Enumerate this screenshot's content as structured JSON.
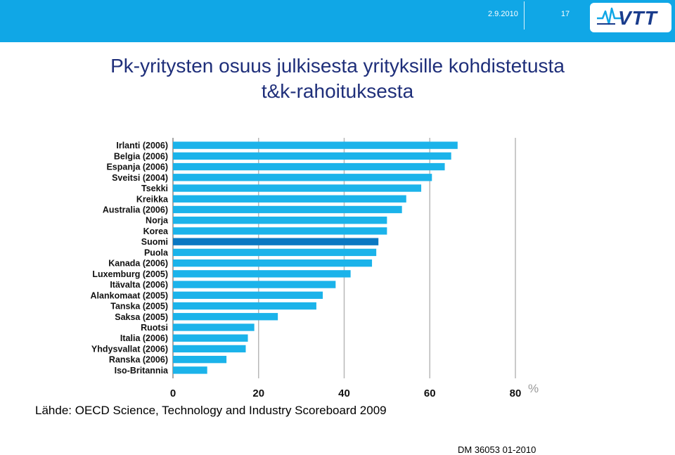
{
  "header": {
    "date": "2.9.2010",
    "page_number": "17",
    "logo_text": "VTT"
  },
  "title": {
    "line1": "Pk-yritysten osuus julkisesta yrityksille kohdistetusta",
    "line2": "t&k-rahoituksesta"
  },
  "chart_data": {
    "type": "bar",
    "orientation": "horizontal",
    "categories": [
      "Irlanti (2006)",
      "Belgia (2006)",
      "Espanja (2006)",
      "Sveitsi (2004)",
      "Tsekki",
      "Kreikka",
      "Australia (2006)",
      "Norja",
      "Korea",
      "Suomi",
      "Puola",
      "Kanada (2006)",
      "Luxemburg (2005)",
      "Itävalta (2006)",
      "Alankomaat (2005)",
      "Tanska (2005)",
      "Saksa (2005)",
      "Ruotsi",
      "Italia (2006)",
      "Yhdysvallat (2006)",
      "Ranska (2006)",
      "Iso-Britannia"
    ],
    "values": [
      66.5,
      65,
      63.5,
      60.5,
      58,
      54.5,
      53.5,
      50,
      50,
      48,
      47.5,
      46.5,
      41.5,
      38,
      35,
      33.5,
      24.5,
      19,
      17.5,
      17,
      12.5,
      8
    ],
    "highlight_category": "Suomi",
    "xlim": [
      0,
      80
    ],
    "xticks": [
      "0",
      "20",
      "40",
      "60",
      "80"
    ],
    "unit_label": "%",
    "grid": true,
    "colors": {
      "bar": "#1bb3ea",
      "highlight": "#0a78c2",
      "grid": "#b8b8b8"
    }
  },
  "footer": {
    "source": "Lähde: OECD Science, Technology and Industry Scoreboard 2009",
    "document_id": "DM 36053  01-2010"
  }
}
